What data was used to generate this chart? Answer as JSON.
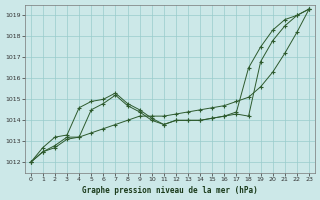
{
  "title": "Graphe pression niveau de la mer (hPa)",
  "background_color": "#cce8e8",
  "grid_color": "#99cccc",
  "line_color": "#2d5a2d",
  "x_values": [
    0,
    1,
    2,
    3,
    4,
    5,
    6,
    7,
    8,
    9,
    10,
    11,
    12,
    13,
    14,
    15,
    16,
    17,
    18,
    19,
    20,
    21,
    22,
    23
  ],
  "series": [
    [
      1012.0,
      1012.7,
      1013.2,
      1013.3,
      1014.6,
      1014.9,
      1015.0,
      1015.3,
      1014.8,
      1014.5,
      1014.1,
      1013.8,
      1014.0,
      1014.0,
      1014.0,
      1014.1,
      1014.2,
      1014.3,
      1014.2,
      1016.8,
      1017.8,
      1018.5,
      1019.0,
      1019.3
    ],
    [
      1012.0,
      1012.5,
      1012.8,
      1013.2,
      1013.2,
      1014.5,
      1014.8,
      1015.2,
      1014.7,
      1014.4,
      1014.0,
      1013.8,
      1014.0,
      1014.0,
      1014.0,
      1014.1,
      1014.2,
      1014.4,
      1016.5,
      1017.5,
      1018.3,
      1018.8,
      1019.0,
      1019.3
    ],
    [
      1012.0,
      1012.5,
      1012.7,
      1013.1,
      1013.2,
      1013.4,
      1013.6,
      1013.8,
      1014.0,
      1014.2,
      1014.2,
      1014.2,
      1014.3,
      1014.4,
      1014.5,
      1014.6,
      1014.7,
      1014.9,
      1015.1,
      1015.6,
      1016.3,
      1017.2,
      1018.2,
      1019.3
    ]
  ],
  "ylim": [
    1011.5,
    1019.5
  ],
  "xlim": [
    -0.5,
    23.5
  ],
  "yticks": [
    1012,
    1013,
    1014,
    1015,
    1016,
    1017,
    1018,
    1019
  ],
  "xticks": [
    0,
    1,
    2,
    3,
    4,
    5,
    6,
    7,
    8,
    9,
    10,
    11,
    12,
    13,
    14,
    15,
    16,
    17,
    18,
    19,
    20,
    21,
    22,
    23
  ],
  "figsize": [
    3.2,
    2.0
  ],
  "dpi": 100
}
